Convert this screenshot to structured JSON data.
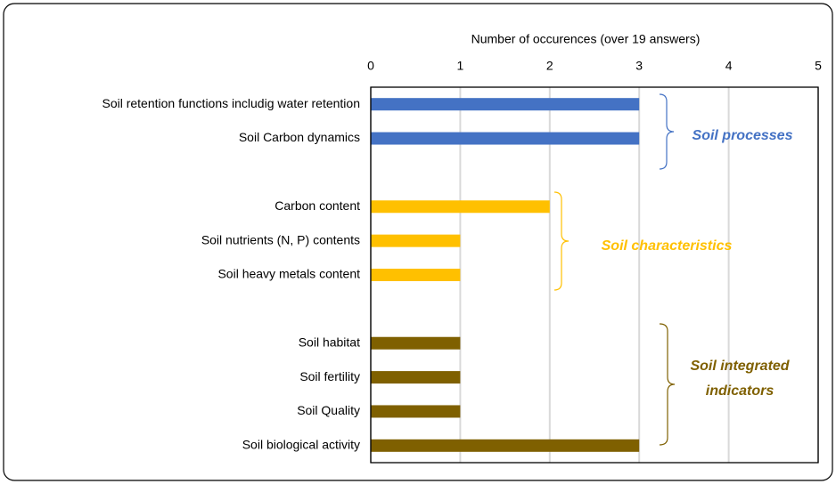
{
  "chart_data": {
    "type": "bar",
    "orientation": "horizontal",
    "xlabel": "Number of occurences (over 19 answers)",
    "categories": [
      "Soil retention functions includig water retention",
      "Soil Carbon dynamics",
      null,
      "Carbon content",
      "Soil nutrients (N, P) contents",
      "Soil heavy metals content",
      null,
      "Soil habitat",
      "Soil fertility",
      "Soil Quality",
      "Soil biological activity"
    ],
    "series": [
      {
        "name": "Soil processes",
        "color": "#4472c4",
        "values": [
          3,
          3,
          null,
          null,
          null,
          null,
          null,
          null,
          null,
          null,
          null
        ]
      },
      {
        "name": "Soil characteristics",
        "color": "#ffc000",
        "values": [
          null,
          null,
          null,
          2,
          1,
          1,
          null,
          null,
          null,
          null,
          null
        ]
      },
      {
        "name": "Soil integrated indicators",
        "color": "#7f6000",
        "values": [
          null,
          null,
          null,
          null,
          null,
          null,
          null,
          1,
          1,
          1,
          3
        ]
      }
    ],
    "xlim": [
      0,
      5
    ],
    "xticks": [
      0,
      1,
      2,
      3,
      4,
      5
    ],
    "grid": true
  }
}
